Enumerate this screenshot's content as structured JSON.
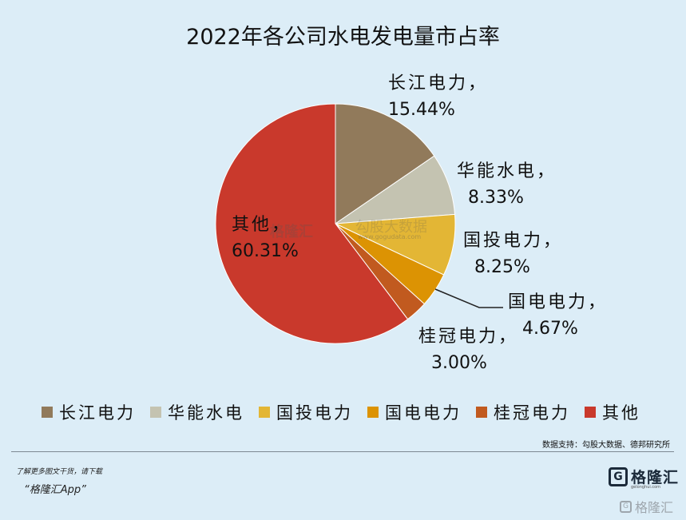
{
  "chart_data": {
    "type": "pie",
    "title": "2022年各公司水电发电量市占率",
    "slices": [
      {
        "name": "长江电力",
        "value": 15.44,
        "label_name": "长江电力，",
        "label_value": "15.44%",
        "color": "#917a5b"
      },
      {
        "name": "华能水电",
        "value": 8.33,
        "label_name": "华能水电，",
        "label_value": "8.33%",
        "color": "#c4c3b1"
      },
      {
        "name": "国投电力",
        "value": 8.25,
        "label_name": "国投电力，",
        "label_value": "8.25%",
        "color": "#e3b635"
      },
      {
        "name": "国电电力",
        "value": 4.67,
        "label_name": "国电电力，",
        "label_value": "4.67%",
        "color": "#dc9303"
      },
      {
        "name": "桂冠电力",
        "value": 3.0,
        "label_name": "桂冠电力，",
        "label_value": "3.00%",
        "color": "#c15a1f"
      },
      {
        "name": "其他",
        "value": 60.31,
        "label_name": "其他，",
        "label_value": "60.31%",
        "color": "#c9392c"
      }
    ],
    "start_angle": "12 o'clock",
    "direction": "clockwise",
    "legend_placement": "bottom"
  },
  "source": "数据支持：勾股大数据、德邦研究所",
  "footer": {
    "note": "了解更多图文干货，请下载",
    "app": "“格隆汇App”",
    "brand": "格隆汇",
    "brand_logo_letter": "G",
    "brand_sub": "gelonghui.com",
    "watermark": "格隆汇"
  },
  "watermarks": {
    "center_brand": "格隆汇",
    "center_gogu": "勾股大数据",
    "center_url": "www.gogudata.com"
  }
}
